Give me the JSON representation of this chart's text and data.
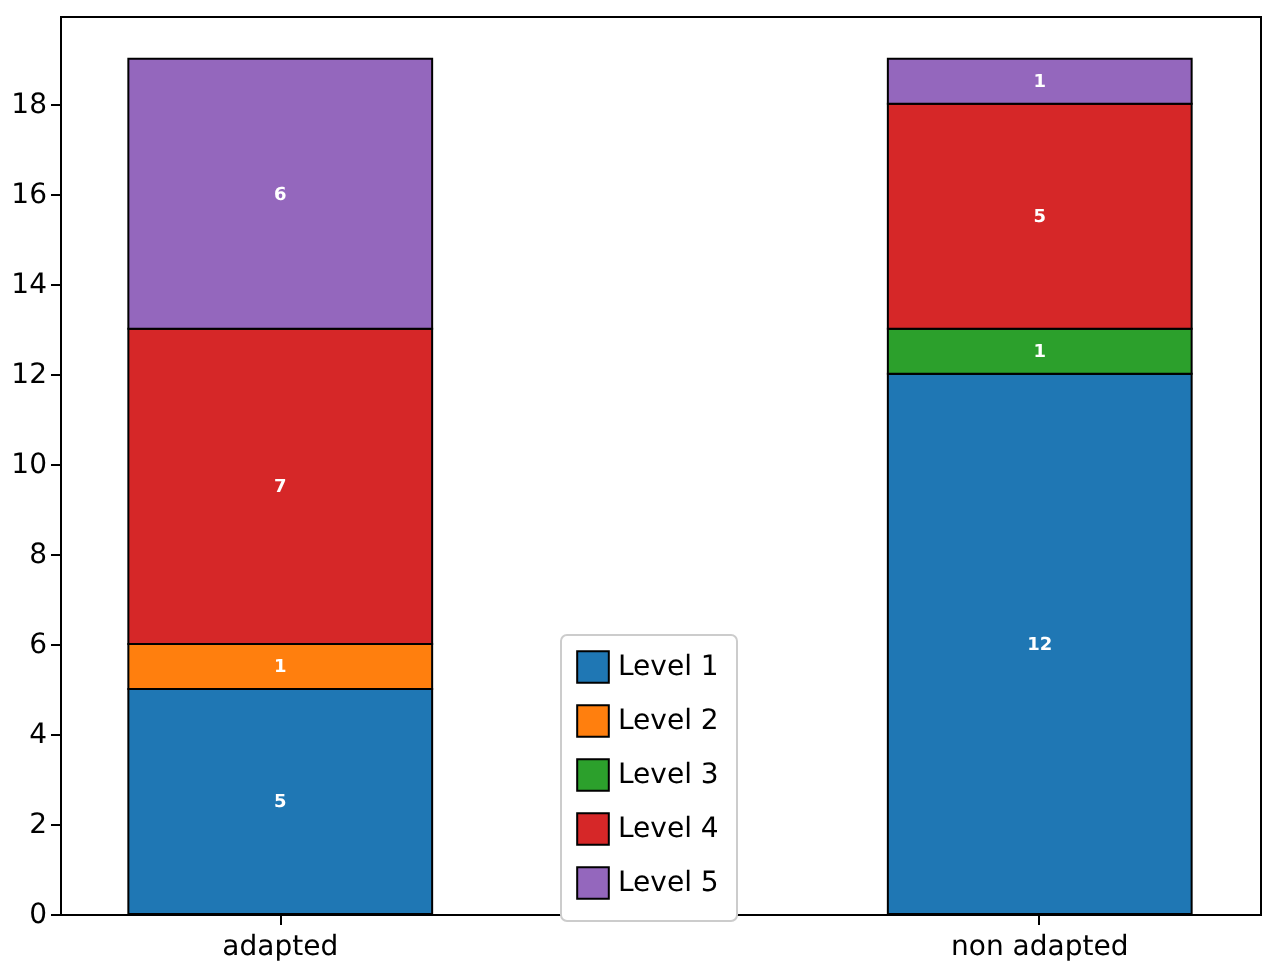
{
  "chart_data": {
    "type": "bar",
    "stacked": true,
    "categories": [
      "adapted",
      "non adapted"
    ],
    "series": [
      {
        "name": "Level 1",
        "color": "#1f77b4",
        "values": [
          5,
          12
        ],
        "value_labels": [
          "5",
          "12"
        ]
      },
      {
        "name": "Level 2",
        "color": "#ff7f0e",
        "values": [
          1,
          0
        ],
        "value_labels": [
          "1",
          null
        ]
      },
      {
        "name": "Level 3",
        "color": "#2ca02c",
        "values": [
          0,
          1
        ],
        "value_labels": [
          null,
          "1"
        ]
      },
      {
        "name": "Level 4",
        "color": "#d62728",
        "values": [
          7,
          5
        ],
        "value_labels": [
          "7",
          "5"
        ]
      },
      {
        "name": "Level 5",
        "color": "#9467bd",
        "values": [
          6,
          1
        ],
        "value_labels": [
          "6",
          "1"
        ]
      }
    ],
    "ylim": [
      0,
      19.95
    ],
    "yticks": [
      0,
      2,
      4,
      6,
      8,
      10,
      12,
      14,
      16,
      18
    ],
    "legend": "bottom",
    "grid": false
  }
}
